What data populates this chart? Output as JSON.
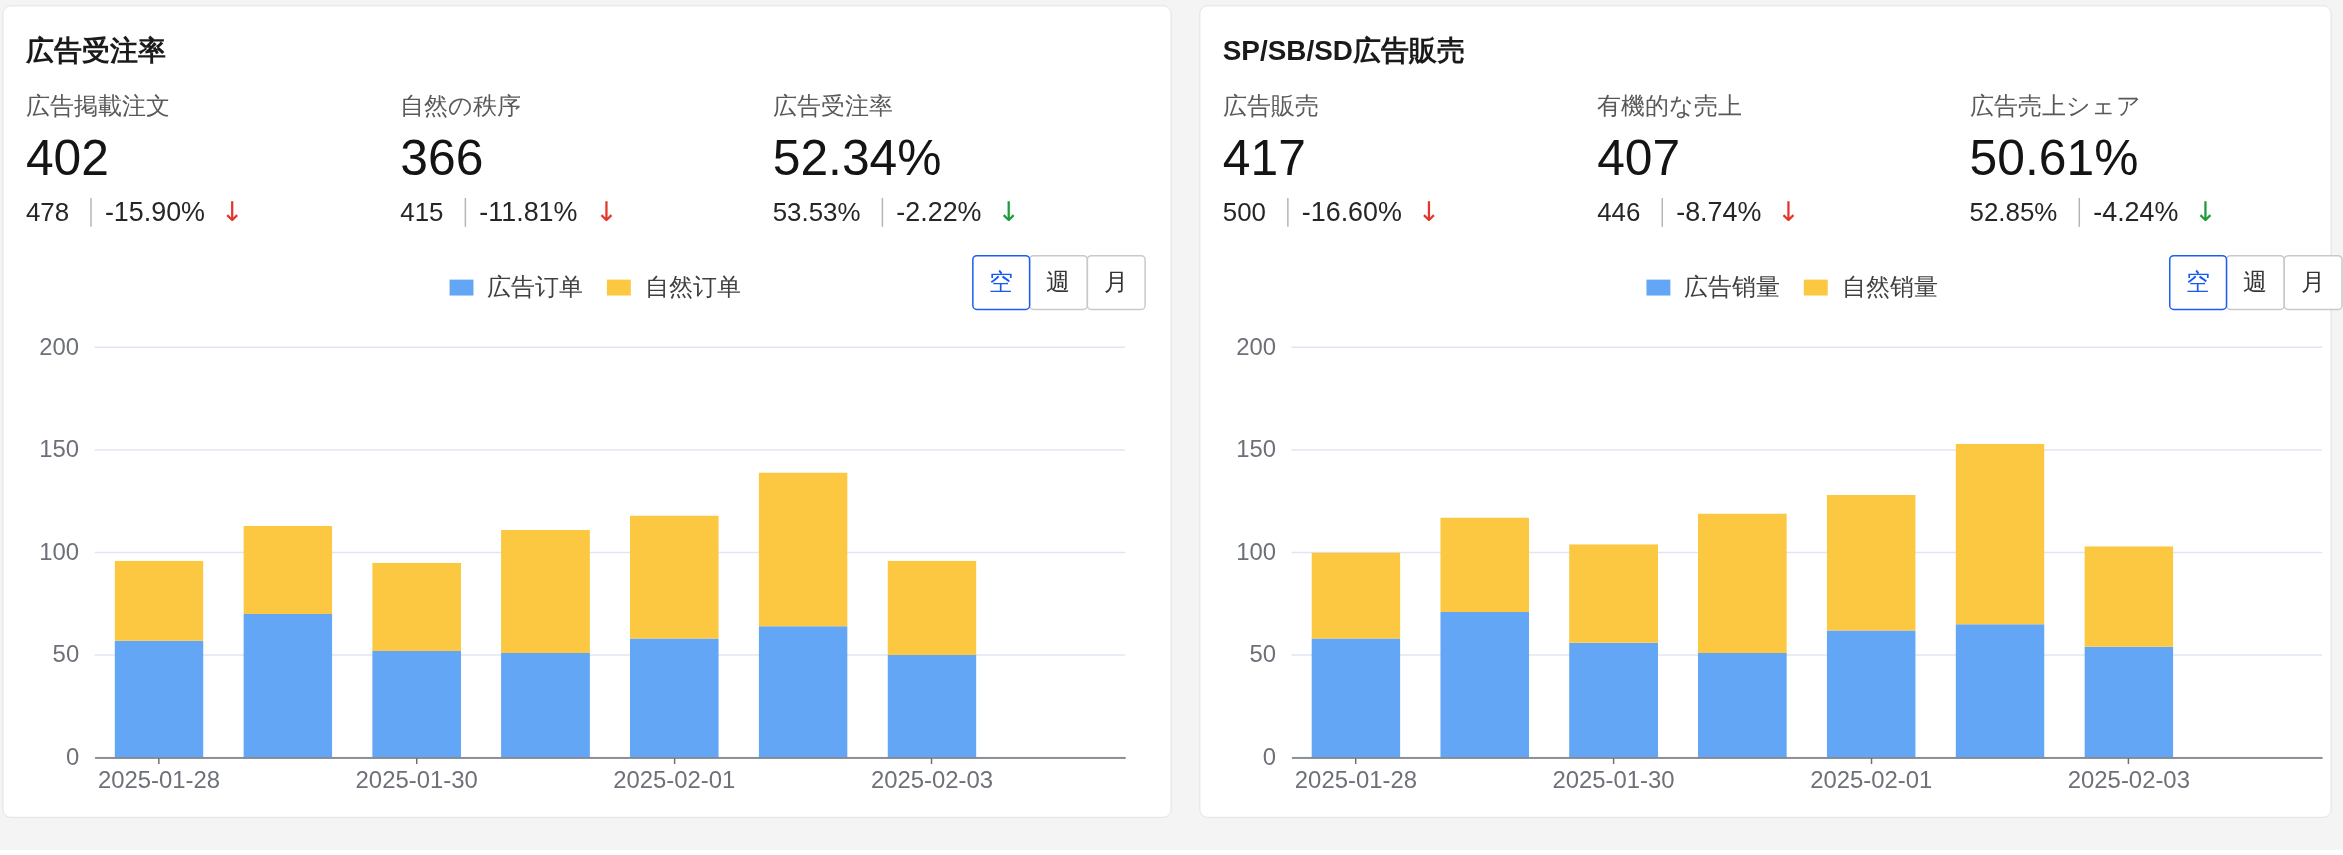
{
  "chart_data": [
    {
      "type": "bar",
      "title": "広告受注率",
      "categories": [
        "2025-01-28",
        null,
        "2025-01-30",
        null,
        "2025-02-01",
        null,
        "2025-02-03",
        null
      ],
      "series": [
        {
          "name": "広告订单",
          "color": "#63a6f5",
          "values": [
            57,
            70,
            52,
            51,
            58,
            64,
            50,
            null
          ]
        },
        {
          "name": "自然订单",
          "color": "#fcc842",
          "values": [
            39,
            43,
            43,
            60,
            60,
            75,
            46,
            null
          ]
        }
      ],
      "stacked": true,
      "ylim": [
        0,
        200
      ],
      "yticks": [
        0,
        50,
        100,
        150,
        200
      ],
      "grid": "y",
      "legend": "top",
      "annotations": [
        "広告掲載注文",
        "402",
        "478",
        "-15.90%",
        "↓",
        "自然の秩序",
        "366",
        "415",
        "-11.81%",
        "↓",
        "広告受注率",
        "52.34%",
        "53.53%",
        "-2.22%",
        "↓",
        "空",
        "週",
        "月"
      ]
    },
    {
      "type": "bar",
      "title": "SP/SB/SD広告販売",
      "categories": [
        "2025-01-28",
        null,
        "2025-01-30",
        null,
        "2025-02-01",
        null,
        "2025-02-03",
        null
      ],
      "series": [
        {
          "name": "広告销量",
          "color": "#63a6f5",
          "values": [
            58,
            71,
            56,
            51,
            62,
            65,
            54,
            null
          ]
        },
        {
          "name": "自然销量",
          "color": "#fcc842",
          "values": [
            42,
            46,
            48,
            68,
            66,
            88,
            49,
            null
          ]
        }
      ],
      "stacked": true,
      "ylim": [
        0,
        200
      ],
      "yticks": [
        0,
        50,
        100,
        150,
        200
      ],
      "grid": "y",
      "legend": "top",
      "annotations": [
        "広告販売",
        "417",
        "500",
        "-16.60%",
        "↓",
        "有機的な売上",
        "407",
        "446",
        "-8.74%",
        "↓",
        "広告売上シェア",
        "50.61%",
        "52.85%",
        "-4.24%",
        "↓",
        "空",
        "週",
        "月"
      ]
    }
  ]
}
